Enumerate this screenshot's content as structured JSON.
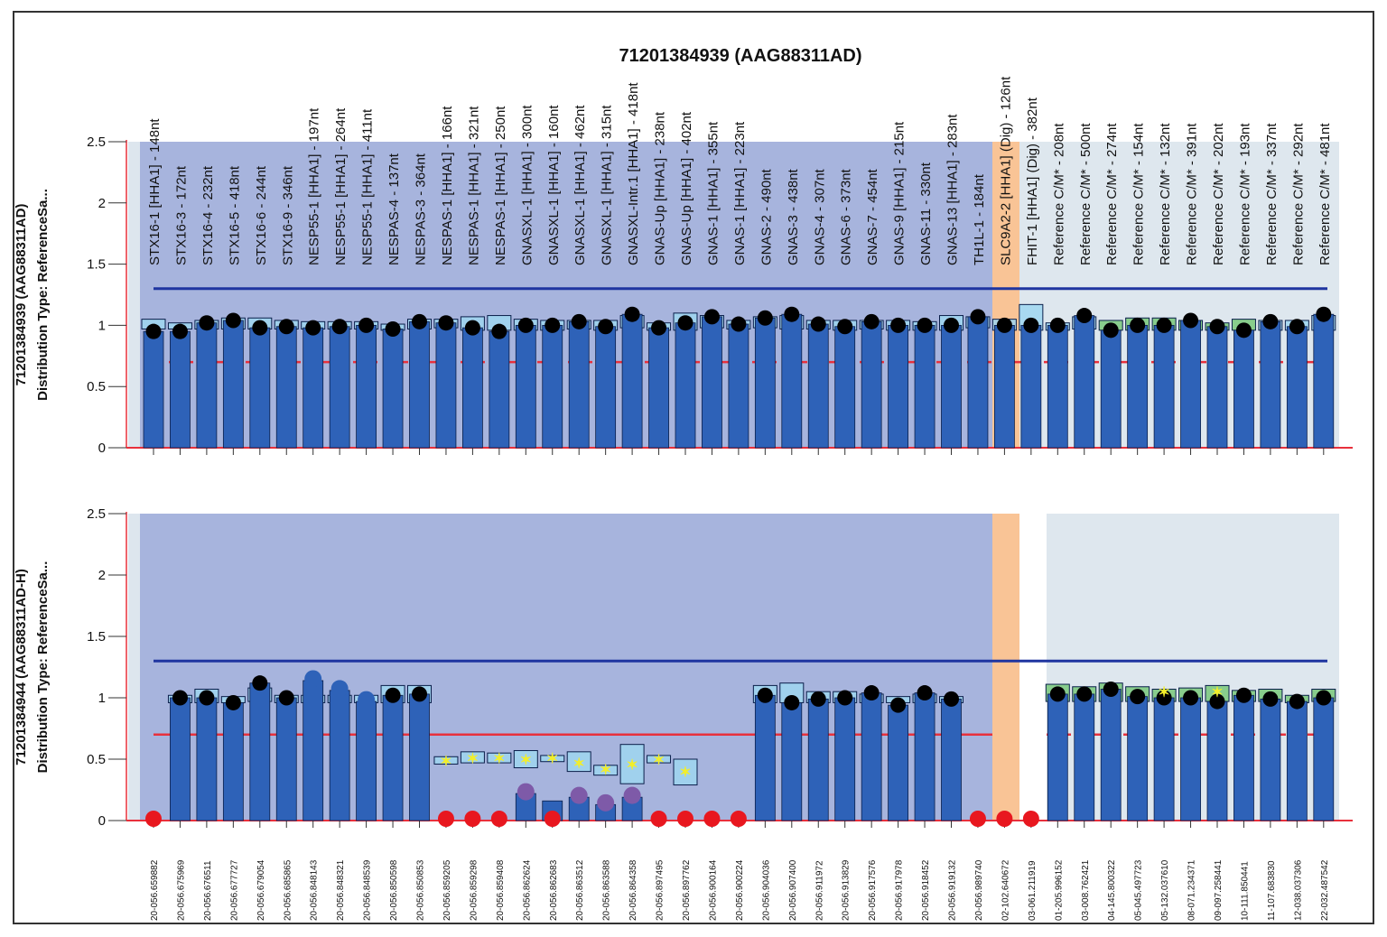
{
  "chart_data": {
    "type": "bar",
    "title": "71201384939 (AAG88311AD)",
    "ylim": [
      0,
      2.5
    ],
    "yticks": [
      "0",
      "0.5",
      "1",
      "1.5",
      "2",
      "2.5"
    ],
    "upper_threshold": 1.3,
    "lower_threshold": 0.7,
    "categories": [
      "STX16-1 [HHA1] - 148nt",
      "STX16-3 - 172nt",
      "STX16-4 - 232nt",
      "STX16-5 - 418nt",
      "STX16-6 - 244nt",
      "STX16-9 - 346nt",
      "NESP55-1 [HHA1] - 197nt",
      "NESP55-1 [HHA1] - 264nt",
      "NESP55-1 [HHA1] - 411nt",
      "NESPAS-4 - 137nt",
      "NESPAS-3 - 364nt",
      "NESPAS-1 [HHA1] - 166nt",
      "NESPAS-1 [HHA1] - 321nt",
      "NESPAS-1 [HHA1] - 250nt",
      "GNASXL-1 [HHA1] - 300nt",
      "GNASXL-1 [HHA1] - 160nt",
      "GNASXL-1 [HHA1] - 462nt",
      "GNASXL-1 [HHA1] - 315nt",
      "GNASXL-Intr.1 [HHA1] - 418nt",
      "GNAS-Up [HHA1] - 238nt",
      "GNAS-Up [HHA1] - 402nt",
      "GNAS-1 [HHA1] - 355nt",
      "GNAS-1 [HHA1] - 223nt",
      "GNAS-2 - 490nt",
      "GNAS-3 - 438nt",
      "GNAS-4 - 307nt",
      "GNAS-6 - 373nt",
      "GNAS-7 - 454nt",
      "GNAS-9 [HHA1] - 215nt",
      "GNAS-11 - 330nt",
      "GNAS-13 [HHA1] - 283nt",
      "TH1L-1 - 184nt",
      "SLC9A2-2 [HHA1] (Dig) - 126nt",
      "FHIT-1 [HHA1] (Dig) - 382nt",
      "Reference C/M* - 208nt",
      "Reference C/M* - 500nt",
      "Reference C/M* - 274nt",
      "Reference C/M* - 154nt",
      "Reference C/M* - 132nt",
      "Reference C/M* - 391nt",
      "Reference C/M* - 202nt",
      "Reference C/M* - 193nt",
      "Reference C/M* - 337nt",
      "Reference C/M* - 292nt",
      "Reference C/M* - 481nt"
    ],
    "coordinates": [
      "20-056.659882",
      "20-056.675969",
      "20-056.676511",
      "20-056.677727",
      "20-056.679054",
      "20-056.685865",
      "20-056.848143",
      "20-056.848321",
      "20-056.848539",
      "20-056.850598",
      "20-056.850853",
      "20-056.859205",
      "20-056.859298",
      "20-056.859408",
      "20-056.862624",
      "20-056.862683",
      "20-056.863512",
      "20-056.863588",
      "20-056.864358",
      "20-056.897495",
      "20-056.897762",
      "20-056.900164",
      "20-056.900224",
      "20-056.904036",
      "20-056.907400",
      "20-056.911972",
      "20-056.913829",
      "20-056.917576",
      "20-056.917978",
      "20-056.918452",
      "20-056.919132",
      "20-056.989740",
      "02-102.640672",
      "03-061.211919",
      "01-205.996152",
      "03-008.762421",
      "04-145.800322",
      "05-045.497723",
      "05-132.037610",
      "08-071.234371",
      "09-097.258441",
      "10-111.850441",
      "11-107.683830",
      "12-038.037306",
      "22-032.487542"
    ],
    "colors": {
      "bar": "#2e62b8",
      "bar_outline": "#0a1e4a",
      "target_region": "#a7b4dd",
      "digest_region": "#f9c496",
      "reference_region": "#dee7ee",
      "upper_line": "#1f35a0",
      "lower_line": "#e8303c",
      "sample_dot": "#000000",
      "zero_dot": "#e8171f",
      "methylation_dot": "#7e5aa8",
      "marker": "#f2ee2a",
      "range_box": "#9fd6f0",
      "reference_box": "#79c87a"
    },
    "panels": [
      {
        "ylabel_line1": "71201384939 (AAG88311AD)",
        "ylabel_line2": "Distribution  Type: ReferenceSa...",
        "values": [
          0.95,
          0.95,
          1.02,
          1.04,
          0.98,
          0.99,
          0.98,
          0.99,
          1.0,
          0.97,
          1.03,
          1.02,
          0.98,
          0.95,
          1.0,
          1.0,
          1.03,
          0.99,
          1.09,
          0.98,
          1.02,
          1.07,
          1.01,
          1.06,
          1.09,
          1.01,
          0.99,
          1.03,
          1.0,
          1.0,
          1.0,
          1.07,
          1.0,
          1.0,
          1.0,
          1.08,
          0.96,
          1.0,
          1.0,
          1.04,
          0.99,
          0.96,
          1.03,
          0.99,
          1.09
        ],
        "range_boxes": [
          [
            0.97,
            1.05
          ],
          [
            0.97,
            1.02
          ],
          [
            0.97,
            1.04
          ],
          [
            0.97,
            1.06
          ],
          [
            0.97,
            1.06
          ],
          [
            0.97,
            1.04
          ],
          [
            0.97,
            1.03
          ],
          [
            0.97,
            1.03
          ],
          [
            0.97,
            1.03
          ],
          [
            0.96,
            1.01
          ],
          [
            0.97,
            1.05
          ],
          [
            0.98,
            1.05
          ],
          [
            0.96,
            1.07
          ],
          [
            0.96,
            1.08
          ],
          [
            0.96,
            1.05
          ],
          [
            0.96,
            1.04
          ],
          [
            0.97,
            1.04
          ],
          [
            0.96,
            1.04
          ],
          [
            0.98,
            1.08
          ],
          [
            0.96,
            1.02
          ],
          [
            0.96,
            1.1
          ],
          [
            0.98,
            1.08
          ],
          [
            0.97,
            1.04
          ],
          [
            0.98,
            1.07
          ],
          [
            0.97,
            1.08
          ],
          [
            0.97,
            1.04
          ],
          [
            0.96,
            1.04
          ],
          [
            0.97,
            1.04
          ],
          [
            0.96,
            1.04
          ],
          [
            0.96,
            1.03
          ],
          [
            0.96,
            1.08
          ],
          [
            0.98,
            1.07
          ],
          [
            0.96,
            1.05
          ],
          [
            0.96,
            1.17
          ],
          [
            0.96,
            1.02
          ],
          [
            0.97,
            1.07
          ],
          [
            0.96,
            1.04
          ],
          [
            0.96,
            1.06
          ],
          [
            0.96,
            1.06
          ],
          [
            0.96,
            1.04
          ],
          [
            0.96,
            1.02
          ],
          [
            0.96,
            1.05
          ],
          [
            0.96,
            1.04
          ],
          [
            0.96,
            1.04
          ],
          [
            0.96,
            1.08
          ]
        ],
        "marks": [
          "",
          "",
          "",
          "",
          "",
          "",
          "",
          "",
          "",
          "",
          "",
          "",
          "",
          "",
          "",
          "",
          "",
          "",
          "",
          "",
          "",
          "",
          "",
          "",
          "",
          "",
          "",
          "",
          "",
          "",
          "",
          "",
          "",
          "",
          "",
          "",
          "",
          "",
          "",
          "",
          "",
          "",
          "",
          "",
          ""
        ]
      },
      {
        "ylabel_line1": "71201384944 (AAG88311AD-H)",
        "ylabel_line2": "Distribution  Type: ReferenceSa...",
        "values": [
          0,
          1.0,
          1.0,
          0.96,
          1.12,
          1.0,
          1.14,
          1.06,
          0.97,
          1.02,
          1.03,
          0.02,
          0,
          0,
          0.22,
          0.16,
          0.19,
          0.13,
          0.19,
          0,
          0,
          0,
          0,
          1.02,
          0.96,
          0.99,
          1.0,
          1.04,
          0.94,
          1.04,
          0.99,
          0,
          0,
          0,
          1.03,
          1.03,
          1.07,
          1.01,
          1.0,
          1.0,
          0.97,
          1.02,
          0.99,
          0.97,
          1.0
        ],
        "range_boxes": [
          null,
          [
            0.96,
            1.02
          ],
          [
            0.96,
            1.07
          ],
          [
            0.96,
            1.01
          ],
          [
            0.97,
            1.08
          ],
          [
            0.96,
            1.02
          ],
          [
            0.96,
            1.02
          ],
          [
            0.96,
            1.02
          ],
          [
            0.96,
            1.02
          ],
          [
            0.96,
            1.1
          ],
          [
            0.96,
            1.1
          ],
          [
            0.46,
            0.52
          ],
          [
            0.47,
            0.56
          ],
          [
            0.47,
            0.55
          ],
          [
            0.43,
            0.57
          ],
          [
            0.48,
            0.53
          ],
          [
            0.4,
            0.56
          ],
          [
            0.37,
            0.45
          ],
          [
            0.3,
            0.62
          ],
          [
            0.47,
            0.53
          ],
          [
            0.29,
            0.5
          ],
          null,
          null,
          [
            0.96,
            1.1
          ],
          [
            0.96,
            1.12
          ],
          [
            0.96,
            1.05
          ],
          [
            0.96,
            1.05
          ],
          [
            0.96,
            1.03
          ],
          [
            0.96,
            1.01
          ],
          [
            0.96,
            1.03
          ],
          [
            0.96,
            1.01
          ],
          null,
          null,
          null,
          [
            0.97,
            1.11
          ],
          [
            0.97,
            1.09
          ],
          [
            0.97,
            1.12
          ],
          [
            0.97,
            1.09
          ],
          [
            0.97,
            1.07
          ],
          [
            0.97,
            1.08
          ],
          [
            0.97,
            1.1
          ],
          [
            0.97,
            1.06
          ],
          [
            0.97,
            1.07
          ],
          [
            0.96,
            1.02
          ],
          [
            0.97,
            1.07
          ]
        ],
        "marks": [
          "zero",
          "",
          "",
          "",
          "",
          "",
          "methylation",
          "methylation",
          "methylation",
          "",
          "",
          "zero",
          "zero",
          "zero",
          "methylation",
          "zero",
          "methylation",
          "methylation",
          "methylation",
          "zero",
          "zero",
          "zero",
          "zero",
          "",
          "",
          "",
          "",
          "",
          "",
          "",
          "",
          "zero",
          "zero",
          "zero",
          "",
          "",
          "",
          "",
          "",
          "",
          "",
          "",
          "",
          "",
          ""
        ],
        "star_markers": [
          null,
          null,
          null,
          null,
          null,
          null,
          null,
          null,
          null,
          null,
          null,
          0.49,
          0.51,
          0.51,
          0.5,
          0.51,
          0.47,
          0.42,
          0.46,
          0.5,
          0.4,
          null,
          null,
          null,
          null,
          null,
          null,
          null,
          null,
          null,
          null,
          null,
          null,
          null,
          null,
          null,
          null,
          null,
          1.05,
          null,
          1.05,
          null,
          null,
          null,
          null
        ]
      }
    ]
  }
}
